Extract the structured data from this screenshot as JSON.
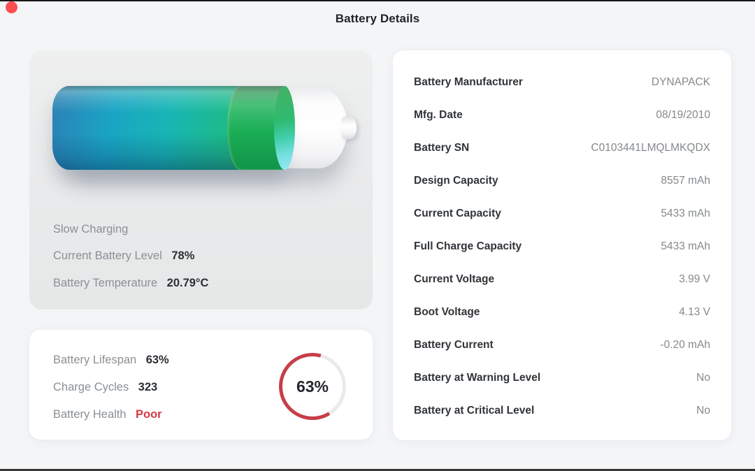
{
  "window": {
    "title": "Battery Details",
    "close_button_color": "#fc4d52"
  },
  "battery_panel": {
    "status_text": "Slow Charging",
    "level_percent": 78,
    "rows": [
      {
        "label": "Current Battery Level",
        "value": "78%"
      },
      {
        "label": "Battery Temperature",
        "value": "20.79°C"
      }
    ]
  },
  "health_panel": {
    "rows": [
      {
        "label": "Battery Lifespan",
        "value": "63%"
      },
      {
        "label": "Charge Cycles",
        "value": "323"
      },
      {
        "label": "Battery Health",
        "value": "Poor",
        "value_color": "#d63a43"
      }
    ],
    "ring": {
      "percent": 63,
      "label": "63%",
      "arc_color": "#c73e49",
      "track_color": "#eaeaea"
    }
  },
  "details_panel": {
    "rows": [
      {
        "label": "Battery Manufacturer",
        "value": "DYNAPACK"
      },
      {
        "label": "Mfg. Date",
        "value": "08/19/2010"
      },
      {
        "label": "Battery SN",
        "value": "C0103441LMQLMKQDX"
      },
      {
        "label": "Design Capacity",
        "value": "8557 mAh"
      },
      {
        "label": "Current Capacity",
        "value": "5433 mAh"
      },
      {
        "label": "Full Charge Capacity",
        "value": "5433 mAh"
      },
      {
        "label": "Current Voltage",
        "value": "3.99 V"
      },
      {
        "label": "Boot Voltage",
        "value": "4.13 V"
      },
      {
        "label": "Battery Current",
        "value": "-0.20 mAh"
      },
      {
        "label": "Battery at Warning Level",
        "value": "No"
      },
      {
        "label": "Battery at Critical Level",
        "value": "No"
      }
    ]
  }
}
